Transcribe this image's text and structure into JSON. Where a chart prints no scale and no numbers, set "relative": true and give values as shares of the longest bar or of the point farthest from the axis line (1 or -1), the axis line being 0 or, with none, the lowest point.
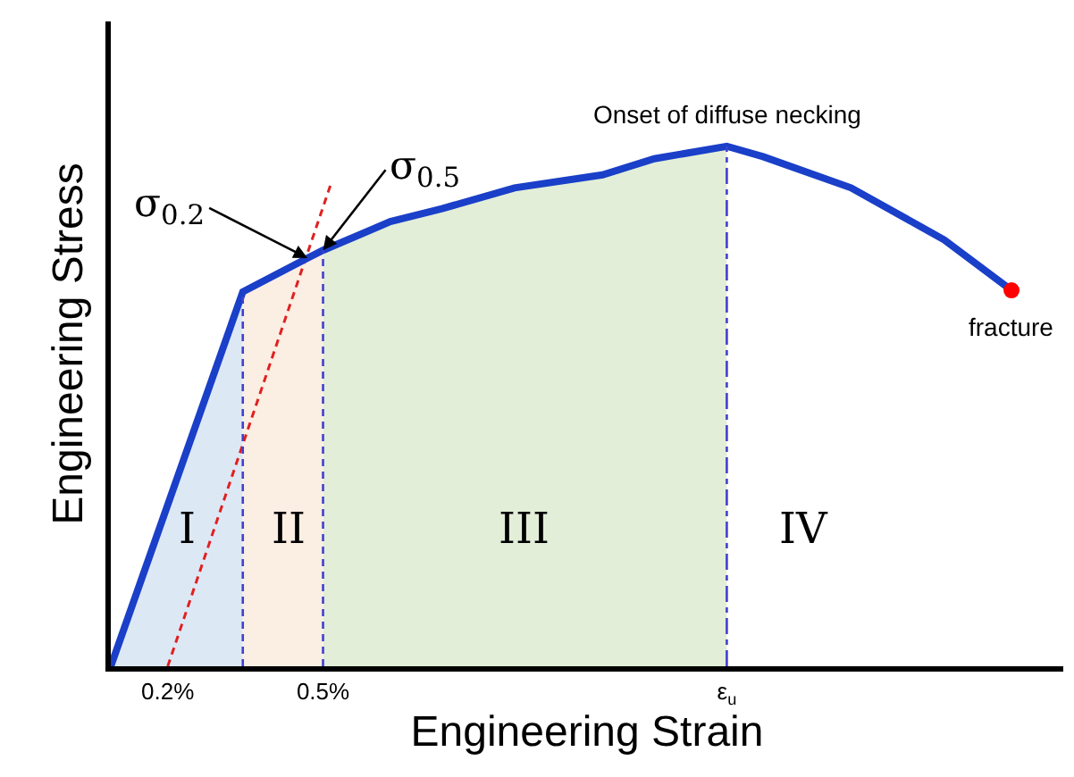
{
  "chart_data": {
    "type": "line",
    "relative": true,
    "xlabel": "Engineering Strain",
    "ylabel": "Engineering Stress",
    "xlim": [
      0.09,
      1.93
    ],
    "xticks": [
      {
        "value": 0.2,
        "label": "0.2%"
      },
      {
        "value": 0.5,
        "label": "0.5%"
      },
      {
        "value": 1.28,
        "label": "ε$_{u}$"
      }
    ],
    "series": [
      {
        "type": "area",
        "color": "#dde8f5",
        "x": [
          0.09,
          0.345
        ],
        "values": [
          0,
          0.72
        ]
      },
      {
        "type": "area",
        "color": "#fbeee3",
        "x": [
          0.345,
          0.47,
          0.5
        ],
        "values": [
          0.72,
          0.785,
          0.8
        ]
      },
      {
        "type": "area",
        "color": "#e2eed8",
        "x": [
          0.5,
          0.63,
          0.73,
          0.87,
          1.04,
          1.14,
          1.28
        ],
        "values": [
          0.8,
          0.855,
          0.88,
          0.92,
          0.945,
          0.976,
          1.0
        ]
      },
      {
        "type": "line",
        "color": "#e02020",
        "line_style": "dashed",
        "x": [
          0.2,
          0.514
        ],
        "values": [
          0,
          0.924
        ]
      },
      {
        "color": "#1a3fc8",
        "x": [
          0.09,
          0.345,
          0.47,
          0.5,
          0.63,
          0.73,
          0.87,
          1.04,
          1.14,
          1.28,
          1.35,
          1.52,
          1.7,
          1.83
        ],
        "values": [
          0,
          0.72,
          0.785,
          0.8,
          0.855,
          0.88,
          0.92,
          0.945,
          0.976,
          1.0,
          0.98,
          0.92,
          0.82,
          0.723
        ]
      },
      {
        "type": "scatter",
        "color": "#ff0000",
        "marker": "circle",
        "x": [
          1.83
        ],
        "values": [
          0.723
        ]
      }
    ],
    "ref_lines": [
      {
        "axis": "x",
        "value": 0.345,
        "color": "#4040d0",
        "line_style": "dashed"
      },
      {
        "axis": "x",
        "value": 0.5,
        "color": "#4040d0",
        "line_style": "dashed"
      },
      {
        "axis": "x",
        "value": 1.28,
        "color": "#4040d0",
        "line_style": "dashdot"
      }
    ],
    "annotations": [
      {
        "text": "σ$_{0.2}$",
        "x": 0.47,
        "y": 0.785
      },
      {
        "text": "σ$_{0.5}$",
        "x": 0.5,
        "y": 0.8
      },
      {
        "text": "Onset of diffuse necking",
        "x": 1.28,
        "y": 1.0
      },
      {
        "text": "fracture",
        "x": 1.83,
        "y": 0.723
      },
      "I",
      "II",
      "III",
      "IV"
    ],
    "grid": false,
    "legend": false
  }
}
